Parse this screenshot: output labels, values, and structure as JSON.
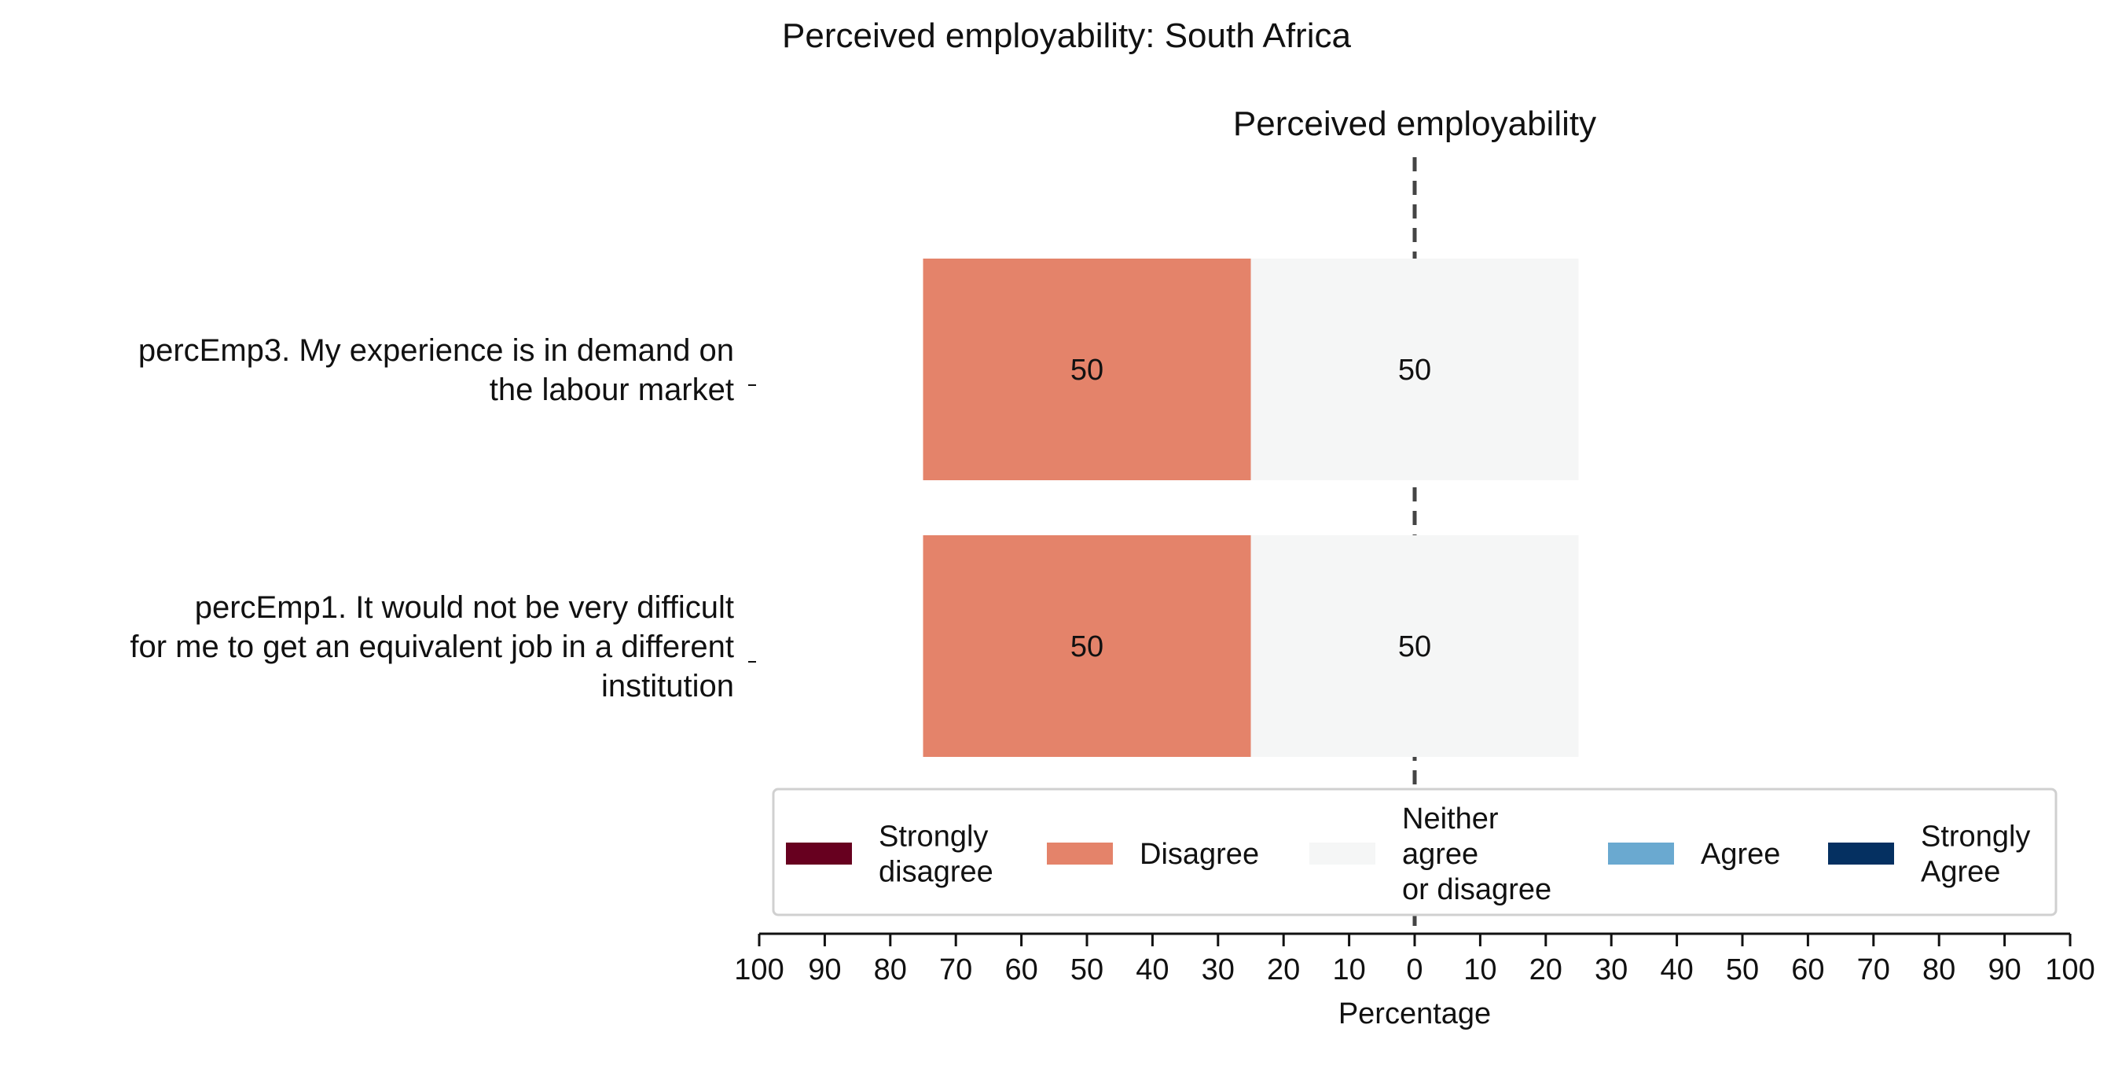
{
  "chart_data": {
    "type": "bar",
    "title": "Perceived employability: South Africa",
    "subtitle": "Perceived employability",
    "xlabel": "Percentage",
    "xlim": [
      -100,
      100
    ],
    "xticks": [
      -100,
      -90,
      -80,
      -70,
      -60,
      -50,
      -40,
      -30,
      -20,
      -10,
      0,
      10,
      20,
      30,
      40,
      50,
      60,
      70,
      80,
      90,
      100
    ],
    "xtick_labels": [
      "100",
      "90",
      "80",
      "70",
      "60",
      "50",
      "40",
      "30",
      "20",
      "10",
      "0",
      "10",
      "20",
      "30",
      "40",
      "50",
      "60",
      "70",
      "80",
      "90",
      "100"
    ],
    "categories": [
      [
        "percEmp3. My experience is in demand on",
        "the labour market"
      ],
      [
        "percEmp1. It would not be very difficult",
        "for me to get an equivalent job in a different",
        "institution"
      ]
    ],
    "series": [
      {
        "name": "Strongly disagree",
        "legend_lines": [
          "Strongly",
          "disagree"
        ],
        "color": "#67001f",
        "values": [
          0,
          0
        ]
      },
      {
        "name": "Disagree",
        "legend_lines": [
          "Disagree"
        ],
        "color": "#e4836a",
        "values": [
          50,
          50
        ]
      },
      {
        "name": "Neither agree or disagree",
        "legend_lines": [
          "Neither",
          "agree",
          "or disagree"
        ],
        "color": "#f5f6f6",
        "values": [
          50,
          50
        ]
      },
      {
        "name": "Agree",
        "legend_lines": [
          "Agree"
        ],
        "color": "#6aa9d0",
        "values": [
          0,
          0
        ]
      },
      {
        "name": "Strongly Agree",
        "legend_lines": [
          "Strongly",
          "Agree"
        ],
        "color": "#053061",
        "values": [
          0,
          0
        ]
      }
    ],
    "bar_labels": [
      [
        "50",
        "50"
      ],
      [
        "50",
        "50"
      ]
    ],
    "legend_position": "bottom-center",
    "grid": false
  }
}
